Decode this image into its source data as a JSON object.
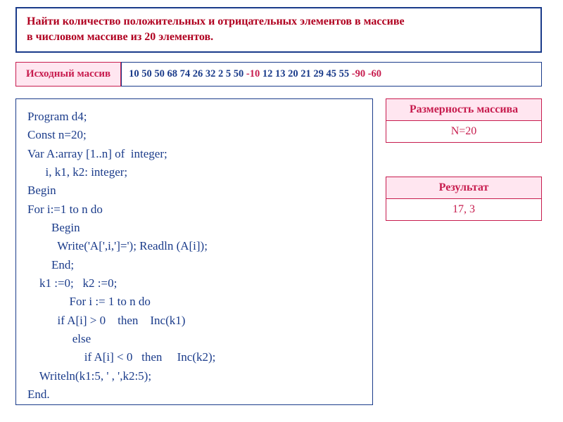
{
  "task": {
    "line1": "Найти количество положительных и отрицательных элементов в массиве",
    "line2": "в числовом массиве из 20 элементов."
  },
  "array_label": "Исходный массив",
  "array_values": [
    {
      "v": "10",
      "neg": false
    },
    {
      "v": "50",
      "neg": false
    },
    {
      "v": "50",
      "neg": false
    },
    {
      "v": "68",
      "neg": false
    },
    {
      "v": "74",
      "neg": false
    },
    {
      "v": "26",
      "neg": false
    },
    {
      "v": "32",
      "neg": false
    },
    {
      "v": "2",
      "neg": false
    },
    {
      "v": "5",
      "neg": false
    },
    {
      "v": "50",
      "neg": false
    },
    {
      "v": "-10",
      "neg": true
    },
    {
      "v": "12",
      "neg": false
    },
    {
      "v": "13",
      "neg": false
    },
    {
      "v": "20",
      "neg": false
    },
    {
      "v": "21",
      "neg": false
    },
    {
      "v": "29",
      "neg": false
    },
    {
      "v": "45",
      "neg": false
    },
    {
      "v": "55",
      "neg": false
    },
    {
      "v": "-90",
      "neg": true
    },
    {
      "v": "-60",
      "neg": true
    }
  ],
  "code": "Program d4;\nConst n=20;\nVar A:array [1..n] of  integer;\n      i, k1, k2: integer;\nBegin\nFor i:=1 to n do\n        Begin\n          Write('A[',i,']='); Readln (A[i]);\n        End;\n    k1 :=0;   k2 :=0;\n              For i := 1 to n do\n          if A[i] > 0    then    Inc(k1)\n               else\n                   if A[i] < 0   then     Inc(k2);\n    Writeln(k1:5, ' , ',k2:5);\nEnd.",
  "dim": {
    "header": "Размерность массива",
    "value": "N=20"
  },
  "result": {
    "header": "Результат",
    "value": "17,   3"
  },
  "colors": {
    "border_blue": "#1a3b8a",
    "text_blue": "#1a3b8a",
    "red": "#c71c4e",
    "task_red": "#b00020",
    "pink_bg": "#ffe6f0"
  }
}
